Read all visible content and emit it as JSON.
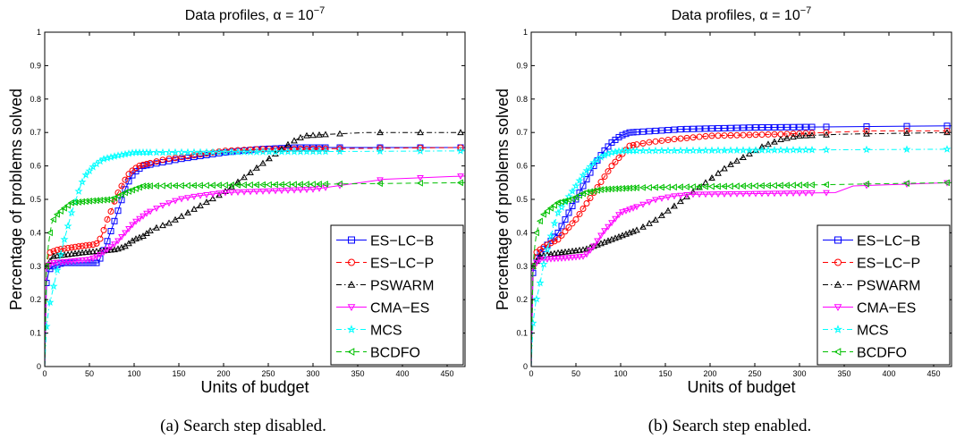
{
  "chart_data": [
    {
      "type": "line",
      "caption": "(a) Search step disabled.",
      "title": "Data profiles, α = 10",
      "title_exponent": "−7",
      "xlabel": "Units of budget",
      "ylabel": "Percentage of problems solved",
      "xlim": [
        0,
        470
      ],
      "ylim": [
        0,
        1
      ],
      "xticks": [
        0,
        50,
        100,
        150,
        200,
        250,
        300,
        350,
        400,
        450
      ],
      "yticks": [
        0,
        0.1,
        0.2,
        0.3,
        0.4,
        0.5,
        0.6,
        0.7,
        0.8,
        0.9,
        1
      ],
      "grid": false,
      "legend_position": "lower-right",
      "series": [
        {
          "name": "ES−LC−B",
          "color": "#0000ff",
          "dash": "solid",
          "marker": "square",
          "points": [
            [
              0,
              0
            ],
            [
              2,
              0.25
            ],
            [
              5,
              0.29
            ],
            [
              10,
              0.3
            ],
            [
              20,
              0.31
            ],
            [
              40,
              0.31
            ],
            [
              60,
              0.31
            ],
            [
              63,
              0.33
            ],
            [
              68,
              0.36
            ],
            [
              72,
              0.39
            ],
            [
              76,
              0.42
            ],
            [
              80,
              0.45
            ],
            [
              85,
              0.49
            ],
            [
              90,
              0.53
            ],
            [
              95,
              0.56
            ],
            [
              100,
              0.58
            ],
            [
              110,
              0.6
            ],
            [
              130,
              0.61
            ],
            [
              150,
              0.62
            ],
            [
              175,
              0.63
            ],
            [
              200,
              0.64
            ],
            [
              240,
              0.65
            ],
            [
              280,
              0.655
            ],
            [
              470,
              0.655
            ]
          ]
        },
        {
          "name": "ES−LC−P",
          "color": "#ff0000",
          "dash": "dashed",
          "marker": "circle",
          "points": [
            [
              0,
              0
            ],
            [
              2,
              0.3
            ],
            [
              5,
              0.34
            ],
            [
              15,
              0.35
            ],
            [
              40,
              0.36
            ],
            [
              55,
              0.365
            ],
            [
              60,
              0.37
            ],
            [
              65,
              0.4
            ],
            [
              70,
              0.44
            ],
            [
              75,
              0.47
            ],
            [
              80,
              0.51
            ],
            [
              88,
              0.55
            ],
            [
              95,
              0.58
            ],
            [
              105,
              0.6
            ],
            [
              120,
              0.61
            ],
            [
              135,
              0.62
            ],
            [
              150,
              0.625
            ],
            [
              175,
              0.635
            ],
            [
              200,
              0.645
            ],
            [
              240,
              0.65
            ],
            [
              470,
              0.655
            ]
          ]
        },
        {
          "name": "PSWARM",
          "color": "#000000",
          "dash": "dashdot",
          "marker": "triangle",
          "points": [
            [
              0,
              0
            ],
            [
              2,
              0.3
            ],
            [
              10,
              0.33
            ],
            [
              40,
              0.34
            ],
            [
              80,
              0.35
            ],
            [
              90,
              0.36
            ],
            [
              100,
              0.38
            ],
            [
              110,
              0.39
            ],
            [
              120,
              0.41
            ],
            [
              140,
              0.43
            ],
            [
              160,
              0.46
            ],
            [
              180,
              0.49
            ],
            [
              200,
              0.52
            ],
            [
              220,
              0.56
            ],
            [
              240,
              0.6
            ],
            [
              260,
              0.64
            ],
            [
              275,
              0.67
            ],
            [
              290,
              0.69
            ],
            [
              320,
              0.695
            ],
            [
              360,
              0.7
            ],
            [
              470,
              0.7
            ]
          ]
        },
        {
          "name": "CMA−ES",
          "color": "#ff00ff",
          "dash": "solid",
          "marker": "triangle-down",
          "points": [
            [
              0,
              0
            ],
            [
              2,
              0.3
            ],
            [
              10,
              0.31
            ],
            [
              30,
              0.315
            ],
            [
              50,
              0.32
            ],
            [
              60,
              0.33
            ],
            [
              70,
              0.35
            ],
            [
              80,
              0.37
            ],
            [
              90,
              0.4
            ],
            [
              100,
              0.43
            ],
            [
              115,
              0.46
            ],
            [
              130,
              0.48
            ],
            [
              150,
              0.5
            ],
            [
              170,
              0.51
            ],
            [
              200,
              0.52
            ],
            [
              300,
              0.53
            ],
            [
              380,
              0.56
            ],
            [
              470,
              0.57
            ]
          ]
        },
        {
          "name": "MCS",
          "color": "#00ffff",
          "dash": "dashdot",
          "marker": "star",
          "points": [
            [
              0,
              0
            ],
            [
              2,
              0.12
            ],
            [
              5,
              0.18
            ],
            [
              10,
              0.24
            ],
            [
              15,
              0.3
            ],
            [
              20,
              0.36
            ],
            [
              25,
              0.41
            ],
            [
              30,
              0.46
            ],
            [
              35,
              0.5
            ],
            [
              40,
              0.54
            ],
            [
              45,
              0.57
            ],
            [
              55,
              0.6
            ],
            [
              65,
              0.62
            ],
            [
              80,
              0.63
            ],
            [
              100,
              0.64
            ],
            [
              470,
              0.645
            ]
          ]
        },
        {
          "name": "BCDFO",
          "color": "#00c000",
          "dash": "dashed",
          "marker": "triangle-left",
          "points": [
            [
              0,
              0
            ],
            [
              2,
              0.3
            ],
            [
              4,
              0.36
            ],
            [
              6,
              0.4
            ],
            [
              8,
              0.43
            ],
            [
              12,
              0.45
            ],
            [
              20,
              0.47
            ],
            [
              30,
              0.49
            ],
            [
              50,
              0.495
            ],
            [
              75,
              0.5
            ],
            [
              90,
              0.52
            ],
            [
              110,
              0.54
            ],
            [
              470,
              0.55
            ]
          ]
        }
      ]
    },
    {
      "type": "line",
      "caption": "(b) Search step enabled.",
      "title": "Data profiles, α = 10",
      "title_exponent": "−7",
      "xlabel": "Units of budget",
      "ylabel": "Percentage of problems solved",
      "xlim": [
        0,
        470
      ],
      "ylim": [
        0,
        1
      ],
      "xticks": [
        0,
        50,
        100,
        150,
        200,
        250,
        300,
        350,
        400,
        450
      ],
      "yticks": [
        0,
        0.1,
        0.2,
        0.3,
        0.4,
        0.5,
        0.6,
        0.7,
        0.8,
        0.9,
        1
      ],
      "grid": false,
      "legend_position": "lower-right",
      "series": [
        {
          "name": "ES−LC−B",
          "color": "#0000ff",
          "dash": "solid",
          "marker": "square",
          "points": [
            [
              0,
              0
            ],
            [
              2,
              0.28
            ],
            [
              5,
              0.32
            ],
            [
              10,
              0.34
            ],
            [
              20,
              0.37
            ],
            [
              30,
              0.4
            ],
            [
              40,
              0.45
            ],
            [
              50,
              0.5
            ],
            [
              60,
              0.55
            ],
            [
              70,
              0.6
            ],
            [
              80,
              0.64
            ],
            [
              90,
              0.67
            ],
            [
              100,
              0.69
            ],
            [
              110,
              0.7
            ],
            [
              170,
              0.71
            ],
            [
              250,
              0.715
            ],
            [
              470,
              0.72
            ]
          ]
        },
        {
          "name": "ES−LC−P",
          "color": "#ff0000",
          "dash": "dashed",
          "marker": "circle",
          "points": [
            [
              0,
              0
            ],
            [
              2,
              0.3
            ],
            [
              5,
              0.34
            ],
            [
              15,
              0.36
            ],
            [
              30,
              0.38
            ],
            [
              40,
              0.41
            ],
            [
              50,
              0.44
            ],
            [
              60,
              0.48
            ],
            [
              70,
              0.52
            ],
            [
              80,
              0.56
            ],
            [
              90,
              0.6
            ],
            [
              100,
              0.63
            ],
            [
              110,
              0.66
            ],
            [
              130,
              0.67
            ],
            [
              160,
              0.68
            ],
            [
              200,
              0.69
            ],
            [
              280,
              0.695
            ],
            [
              380,
              0.705
            ],
            [
              470,
              0.705
            ]
          ]
        },
        {
          "name": "PSWARM",
          "color": "#000000",
          "dash": "dashdot",
          "marker": "triangle",
          "points": [
            [
              0,
              0
            ],
            [
              2,
              0.3
            ],
            [
              10,
              0.33
            ],
            [
              30,
              0.34
            ],
            [
              60,
              0.35
            ],
            [
              80,
              0.37
            ],
            [
              100,
              0.39
            ],
            [
              120,
              0.41
            ],
            [
              140,
              0.44
            ],
            [
              160,
              0.48
            ],
            [
              180,
              0.52
            ],
            [
              200,
              0.56
            ],
            [
              220,
              0.6
            ],
            [
              240,
              0.63
            ],
            [
              260,
              0.66
            ],
            [
              280,
              0.68
            ],
            [
              300,
              0.69
            ],
            [
              350,
              0.695
            ],
            [
              470,
              0.7
            ]
          ]
        },
        {
          "name": "CMA−ES",
          "color": "#ff00ff",
          "dash": "solid",
          "marker": "triangle-down",
          "points": [
            [
              0,
              0
            ],
            [
              2,
              0.3
            ],
            [
              10,
              0.32
            ],
            [
              40,
              0.325
            ],
            [
              60,
              0.33
            ],
            [
              70,
              0.36
            ],
            [
              80,
              0.4
            ],
            [
              90,
              0.43
            ],
            [
              100,
              0.46
            ],
            [
              120,
              0.48
            ],
            [
              140,
              0.5
            ],
            [
              160,
              0.51
            ],
            [
              180,
              0.515
            ],
            [
              340,
              0.52
            ],
            [
              360,
              0.54
            ],
            [
              470,
              0.55
            ]
          ]
        },
        {
          "name": "MCS",
          "color": "#00ffff",
          "dash": "dashdot",
          "marker": "star",
          "points": [
            [
              0,
              0
            ],
            [
              2,
              0.13
            ],
            [
              5,
              0.19
            ],
            [
              10,
              0.25
            ],
            [
              15,
              0.32
            ],
            [
              20,
              0.37
            ],
            [
              25,
              0.42
            ],
            [
              30,
              0.46
            ],
            [
              40,
              0.5
            ],
            [
              50,
              0.54
            ],
            [
              60,
              0.58
            ],
            [
              70,
              0.61
            ],
            [
              80,
              0.63
            ],
            [
              90,
              0.64
            ],
            [
              100,
              0.645
            ],
            [
              470,
              0.65
            ]
          ]
        },
        {
          "name": "BCDFO",
          "color": "#00c000",
          "dash": "dashed",
          "marker": "triangle-left",
          "points": [
            [
              0,
              0
            ],
            [
              2,
              0.3
            ],
            [
              4,
              0.36
            ],
            [
              6,
              0.4
            ],
            [
              8,
              0.42
            ],
            [
              12,
              0.45
            ],
            [
              20,
              0.47
            ],
            [
              30,
              0.49
            ],
            [
              45,
              0.5
            ],
            [
              60,
              0.52
            ],
            [
              80,
              0.53
            ],
            [
              120,
              0.535
            ],
            [
              470,
              0.55
            ]
          ]
        }
      ]
    }
  ]
}
